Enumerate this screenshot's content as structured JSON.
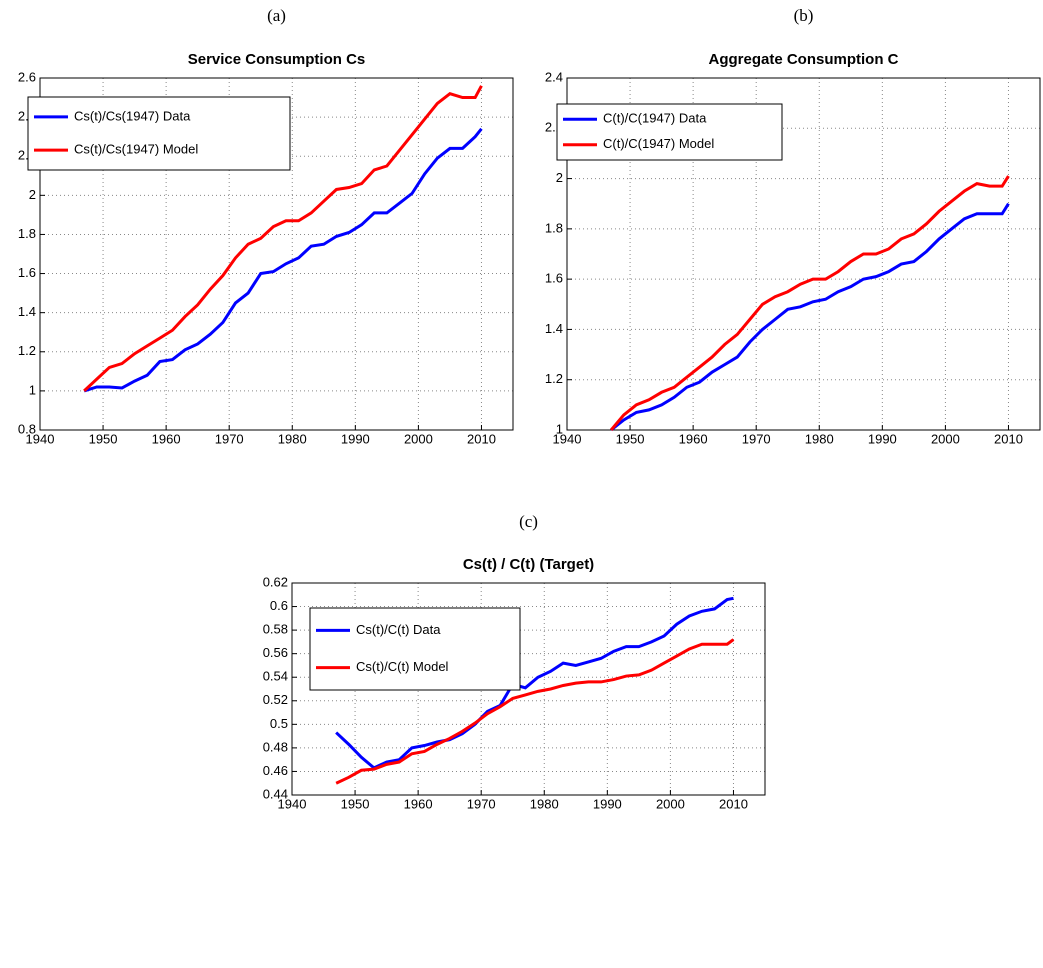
{
  "chart_data": [
    {
      "type": "line",
      "panel": "(a)",
      "title": "Service Consumption Cs",
      "x": [
        1947,
        1949,
        1951,
        1953,
        1955,
        1957,
        1959,
        1961,
        1963,
        1965,
        1967,
        1969,
        1971,
        1973,
        1975,
        1977,
        1979,
        1981,
        1983,
        1985,
        1987,
        1989,
        1991,
        1993,
        1995,
        1997,
        1999,
        2001,
        2003,
        2005,
        2007,
        2009,
        2010
      ],
      "series": [
        {
          "name": "Cs(t)/Cs(1947) Data",
          "color": "#0000ff",
          "values": [
            1.0,
            1.02,
            1.02,
            1.015,
            1.05,
            1.08,
            1.15,
            1.16,
            1.21,
            1.24,
            1.29,
            1.35,
            1.45,
            1.5,
            1.6,
            1.61,
            1.65,
            1.68,
            1.74,
            1.75,
            1.79,
            1.81,
            1.85,
            1.91,
            1.91,
            1.96,
            2.01,
            2.11,
            2.19,
            2.24,
            2.24,
            2.3,
            2.34
          ]
        },
        {
          "name": "Cs(t)/Cs(1947) Model",
          "color": "#ff0000",
          "values": [
            1.0,
            1.06,
            1.12,
            1.14,
            1.19,
            1.23,
            1.27,
            1.31,
            1.38,
            1.44,
            1.52,
            1.59,
            1.68,
            1.75,
            1.78,
            1.84,
            1.87,
            1.87,
            1.91,
            1.97,
            2.03,
            2.04,
            2.06,
            2.13,
            2.15,
            2.23,
            2.31,
            2.39,
            2.47,
            2.52,
            2.5,
            2.5,
            2.56
          ]
        }
      ],
      "xlim": [
        1940,
        2015
      ],
      "xticks": [
        1940,
        1950,
        1960,
        1970,
        1980,
        1990,
        2000,
        2010
      ],
      "ylim": [
        0.8,
        2.6
      ],
      "yticks": [
        0.8,
        1,
        1.2,
        1.4,
        1.6,
        1.8,
        2,
        2.2,
        2.4,
        2.6
      ],
      "grid": true,
      "legend": "upper left"
    },
    {
      "type": "line",
      "panel": "(b)",
      "title": "Aggregate Consumption C",
      "x": [
        1947,
        1949,
        1951,
        1953,
        1955,
        1957,
        1959,
        1961,
        1963,
        1965,
        1967,
        1969,
        1971,
        1973,
        1975,
        1977,
        1979,
        1981,
        1983,
        1985,
        1987,
        1989,
        1991,
        1993,
        1995,
        1997,
        1999,
        2001,
        2003,
        2005,
        2007,
        2009,
        2010
      ],
      "series": [
        {
          "name": "C(t)/C(1947) Data",
          "color": "#0000ff",
          "values": [
            1.0,
            1.04,
            1.07,
            1.08,
            1.1,
            1.13,
            1.17,
            1.19,
            1.23,
            1.26,
            1.29,
            1.35,
            1.4,
            1.44,
            1.48,
            1.49,
            1.51,
            1.52,
            1.55,
            1.57,
            1.6,
            1.61,
            1.63,
            1.66,
            1.67,
            1.71,
            1.76,
            1.8,
            1.84,
            1.86,
            1.86,
            1.86,
            1.9
          ]
        },
        {
          "name": "C(t)/C(1947) Model",
          "color": "#ff0000",
          "values": [
            1.0,
            1.06,
            1.1,
            1.12,
            1.15,
            1.17,
            1.21,
            1.25,
            1.29,
            1.34,
            1.38,
            1.44,
            1.5,
            1.53,
            1.55,
            1.58,
            1.6,
            1.6,
            1.63,
            1.67,
            1.7,
            1.7,
            1.72,
            1.76,
            1.78,
            1.82,
            1.87,
            1.91,
            1.95,
            1.98,
            1.97,
            1.97,
            2.01
          ]
        }
      ],
      "xlim": [
        1940,
        2015
      ],
      "xticks": [
        1940,
        1950,
        1960,
        1970,
        1980,
        1990,
        2000,
        2010
      ],
      "ylim": [
        1,
        2.4
      ],
      "yticks": [
        1,
        1.2,
        1.4,
        1.6,
        1.8,
        2,
        2.2,
        2.4
      ],
      "grid": true,
      "legend": "upper left"
    },
    {
      "type": "line",
      "panel": "(c)",
      "title": "Cs(t) / C(t) (Target)",
      "x": [
        1947,
        1949,
        1951,
        1953,
        1955,
        1957,
        1959,
        1961,
        1963,
        1965,
        1967,
        1969,
        1971,
        1973,
        1975,
        1977,
        1979,
        1981,
        1983,
        1985,
        1987,
        1989,
        1991,
        1993,
        1995,
        1997,
        1999,
        2001,
        2003,
        2005,
        2007,
        2009,
        2010
      ],
      "series": [
        {
          "name": "Cs(t)/C(t) Data",
          "color": "#0000ff",
          "values": [
            0.493,
            0.483,
            0.472,
            0.463,
            0.468,
            0.47,
            0.48,
            0.482,
            0.485,
            0.487,
            0.492,
            0.5,
            0.511,
            0.516,
            0.534,
            0.531,
            0.54,
            0.545,
            0.552,
            0.55,
            0.553,
            0.556,
            0.562,
            0.566,
            0.566,
            0.57,
            0.575,
            0.585,
            0.592,
            0.596,
            0.598,
            0.606,
            0.607
          ]
        },
        {
          "name": "Cs(t)/C(t) Model",
          "color": "#ff0000",
          "values": [
            0.45,
            0.455,
            0.461,
            0.462,
            0.466,
            0.468,
            0.475,
            0.477,
            0.483,
            0.488,
            0.494,
            0.501,
            0.509,
            0.515,
            0.522,
            0.525,
            0.528,
            0.53,
            0.533,
            0.535,
            0.536,
            0.536,
            0.538,
            0.541,
            0.542,
            0.546,
            0.552,
            0.558,
            0.564,
            0.568,
            0.568,
            0.568,
            0.572
          ]
        }
      ],
      "xlim": [
        1940,
        2015
      ],
      "xticks": [
        1940,
        1950,
        1960,
        1970,
        1980,
        1990,
        2000,
        2010
      ],
      "ylim": [
        0.44,
        0.62
      ],
      "yticks": [
        0.44,
        0.46,
        0.48,
        0.5,
        0.52,
        0.54,
        0.56,
        0.58,
        0.6,
        0.62
      ],
      "grid": true,
      "legend": "upper left"
    }
  ]
}
